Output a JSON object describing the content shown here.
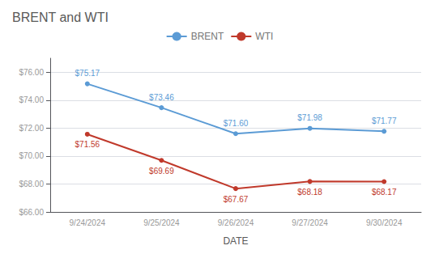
{
  "chart_data": {
    "type": "line",
    "title": "BRENT and WTI",
    "xlabel": "DATE",
    "categories": [
      "9/24/2024",
      "9/25/2024",
      "9/26/2024",
      "9/27/2024",
      "9/30/2024"
    ],
    "series": [
      {
        "name": "BRENT",
        "color": "#5B9BD5",
        "marker": "circle",
        "values": [
          75.17,
          73.46,
          71.6,
          71.98,
          71.77
        ],
        "value_labels": [
          "$75.17",
          "$73.46",
          "$71.60",
          "$71.98",
          "$71.77"
        ]
      },
      {
        "name": "WTI",
        "color": "#C0392B",
        "marker": "circle",
        "values": [
          71.56,
          69.69,
          67.67,
          68.18,
          68.17
        ],
        "value_labels": [
          "$71.56",
          "$69.69",
          "$67.67",
          "$68.18",
          "$68.17"
        ]
      }
    ],
    "ylim": [
      66.0,
      77.0
    ],
    "yticks": [
      {
        "value": 66.0,
        "label": "$66.00"
      },
      {
        "value": 68.0,
        "label": "$68.00"
      },
      {
        "value": 70.0,
        "label": "$70.00"
      },
      {
        "value": 72.0,
        "label": "$72.00"
      },
      {
        "value": 74.0,
        "label": "$74.00"
      },
      {
        "value": 76.0,
        "label": "$76.00"
      }
    ],
    "grid": true,
    "legend": "top",
    "data_labels": true
  }
}
